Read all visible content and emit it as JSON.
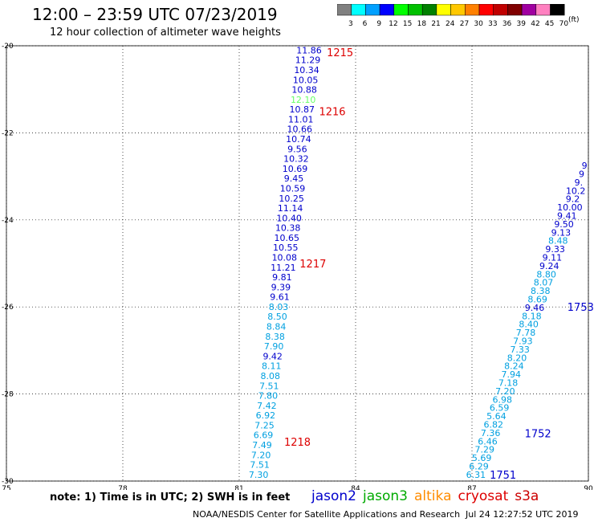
{
  "header": {
    "title": "12:00 – 23:59 UTC 07/23/2019",
    "subtitle": "12 hour collection of altimeter wave heights"
  },
  "colorbar": {
    "labels": [
      "3",
      "6",
      "9",
      "12",
      "15",
      "18",
      "21",
      "24",
      "27",
      "30",
      "33",
      "36",
      "39",
      "42",
      "45",
      "70"
    ],
    "colors": [
      "#808080",
      "#00ffff",
      "#00a0ff",
      "#0000ff",
      "#00ff00",
      "#00c000",
      "#008000",
      "#ffff00",
      "#ffc800",
      "#ff8000",
      "#ff0000",
      "#c00000",
      "#800000",
      "#a000a0",
      "#ff80c0",
      "#000000"
    ],
    "unit": "(ft)"
  },
  "footer": {
    "note": "note: 1) Time is in UTC; 2) SWH is in feet",
    "credit": "NOAA/NESDIS Center for Satellite Applications and Research",
    "timestamp": "Jul 24 12:27:52 UTC 2019"
  },
  "legend": [
    {
      "name": "jason2",
      "color": "#0000cc"
    },
    {
      "name": "jason3",
      "color": "#00aa00"
    },
    {
      "name": "altika",
      "color": "#ff8c00"
    },
    {
      "name": "cryosat",
      "color": "#dd0000"
    },
    {
      "name": "s3a",
      "color": "#cc0000"
    }
  ],
  "chart_data": {
    "type": "scatter",
    "xlim": [
      75,
      90
    ],
    "ylim": [
      -30,
      -20
    ],
    "xticks": [
      "75",
      "78",
      "81",
      "84",
      "87",
      "90"
    ],
    "yticks": [
      "-20",
      "-22",
      "-24",
      "-26",
      "-28",
      "-30"
    ],
    "grid": true,
    "value_colors": {
      "low": "#00a0e0",
      "mid": "#0000cc",
      "hi": "#66ff66"
    },
    "track_a": {
      "x_start": 82.8,
      "x_end": 81.5,
      "y_start": -20.1,
      "y_end": -29.85,
      "values": [
        "11.86",
        "11.29",
        "10.34",
        "10.05",
        "10.88",
        "12.10",
        "10.87",
        "11.01",
        "10.66",
        "10.74",
        "9.56",
        "10.32",
        "10.69",
        "9.45",
        "10.59",
        "10.25",
        "11.14",
        "10.40",
        "10.38",
        "10.65",
        "10.55",
        "10.08",
        "11.21",
        "9.81",
        "9.39",
        "9.61",
        "8.03",
        "8.50",
        "8.84",
        "8.38",
        "7.90",
        "9.42",
        "8.11",
        "8.08",
        "7.51",
        "7.80",
        "7.42",
        "6.92",
        "7.25",
        "6.69",
        "7.49",
        "7.20",
        "7.51",
        "7.30"
      ],
      "colors": [
        "mid",
        "mid",
        "mid",
        "mid",
        "mid",
        "hi",
        "mid",
        "mid",
        "mid",
        "mid",
        "mid",
        "mid",
        "mid",
        "mid",
        "mid",
        "mid",
        "mid",
        "mid",
        "mid",
        "mid",
        "mid",
        "mid",
        "mid",
        "mid",
        "mid",
        "mid",
        "low",
        "low",
        "low",
        "low",
        "low",
        "mid",
        "low",
        "low",
        "low",
        "low",
        "low",
        "low",
        "low",
        "low",
        "low",
        "low",
        "low",
        "low"
      ]
    },
    "track_b": {
      "x_start": 89.9,
      "x_end": 87.1,
      "y_start": -22.75,
      "y_end": -29.85,
      "values": [
        "9",
        "9",
        "9.",
        "10.2",
        "9.2",
        "10.00",
        "9.41",
        "9.50",
        "9.13",
        "8.48",
        "9.33",
        "9.11",
        "9.24",
        "8.80",
        "8.07",
        "8.38",
        "8.69",
        "9.46",
        "8.18",
        "8.40",
        "7.78",
        "7.93",
        "7.33",
        "8.20",
        "8.24",
        "7.94",
        "7.18",
        "7.20",
        "6.98",
        "6.59",
        "5.64",
        "6.82",
        "7.36",
        "6.46",
        "7.29",
        "5.69",
        "6.29",
        "6.31"
      ],
      "colors": [
        "mid",
        "mid",
        "mid",
        "mid",
        "mid",
        "mid",
        "mid",
        "mid",
        "mid",
        "low",
        "mid",
        "mid",
        "mid",
        "low",
        "low",
        "low",
        "low",
        "mid",
        "low",
        "low",
        "low",
        "low",
        "low",
        "low",
        "low",
        "low",
        "low",
        "low",
        "low",
        "low",
        "low",
        "low",
        "low",
        "low",
        "low",
        "low",
        "low",
        "low"
      ]
    },
    "time_labels": [
      {
        "text": "1215",
        "x": 83.6,
        "y": -20.15,
        "color": "#dd0000"
      },
      {
        "text": "1216",
        "x": 83.4,
        "y": -21.5,
        "color": "#dd0000"
      },
      {
        "text": "1217",
        "x": 82.9,
        "y": -25.0,
        "color": "#dd0000"
      },
      {
        "text": "1218",
        "x": 82.5,
        "y": -29.1,
        "color": "#dd0000"
      },
      {
        "text": "1753",
        "x": 89.8,
        "y": -26.0,
        "color": "#0000cc"
      },
      {
        "text": "1752",
        "x": 88.7,
        "y": -28.9,
        "color": "#0000cc"
      },
      {
        "text": "1751",
        "x": 87.8,
        "y": -29.85,
        "color": "#0000cc"
      }
    ]
  }
}
